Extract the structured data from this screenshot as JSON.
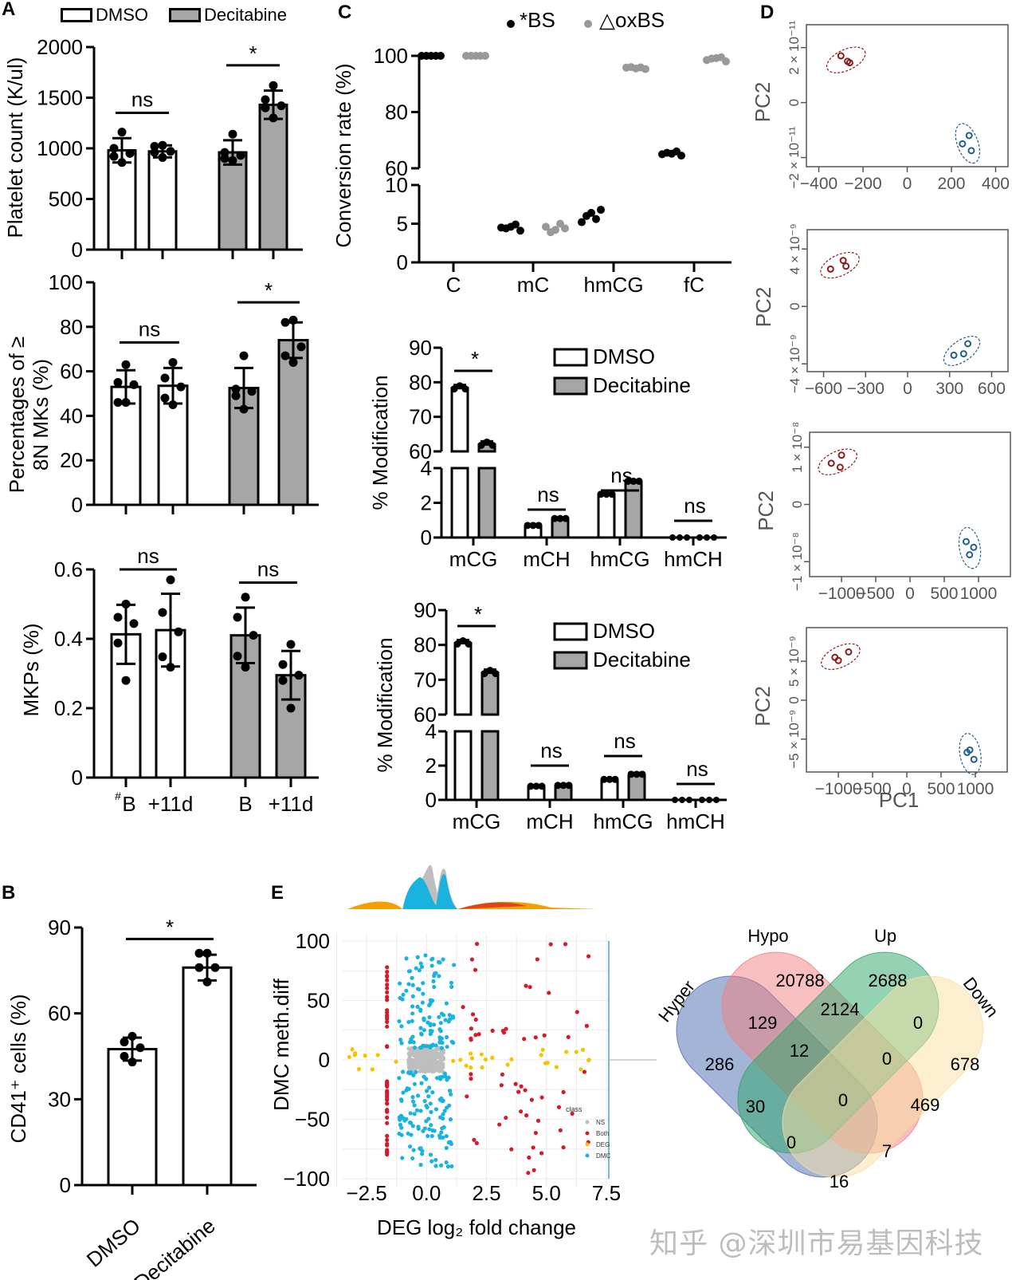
{
  "panel_labels": {
    "A": "A",
    "B": "B",
    "C": "C",
    "D": "D",
    "E": "E"
  },
  "legend_A": {
    "dmso": "DMSO",
    "decitabine": "Decitabine"
  },
  "colors": {
    "dmso_fill": "#ffffff",
    "decitabine_fill": "#a6a6a6",
    "bs": "#000000",
    "oxbs": "#999999",
    "pca_red": "#8b1a1a",
    "pca_blue": "#1f5f8b",
    "ns": "#bebebe",
    "both": "#d7192b",
    "deg": "#f2c500",
    "dmc": "#1ab3e0"
  },
  "watermark": "知乎 @深圳市易基因科技",
  "chart_data": [
    {
      "id": "A1",
      "type": "bar",
      "ylabel": "Platelet count (K/ul)",
      "ylim": [
        0,
        2000
      ],
      "yticks": [
        0,
        500,
        1000,
        1500,
        2000
      ],
      "groups": [
        "DMSO",
        "DMSO",
        "Decitabine",
        "Decitabine"
      ],
      "values": [
        980,
        970,
        960,
        1430
      ],
      "sd": [
        120,
        60,
        120,
        140
      ],
      "points": [
        [
          1160,
          1000,
          950,
          920,
          860
        ],
        [
          1030,
          1020,
          970,
          960,
          910
        ],
        [
          1140,
          960,
          930,
          900,
          880
        ],
        [
          1620,
          1480,
          1420,
          1400,
          1300
        ]
      ],
      "significance": [
        {
          "label": "ns",
          "pair": [
            0,
            1
          ],
          "y": 1350
        },
        {
          "label": "*",
          "pair": [
            2,
            3
          ],
          "y": 1820
        }
      ]
    },
    {
      "id": "A2",
      "type": "bar",
      "ylabel_lines": [
        "Percentages of ≥",
        "8N MKs (%)"
      ],
      "ylim": [
        0,
        100
      ],
      "yticks": [
        0,
        20,
        40,
        60,
        80,
        100
      ],
      "values": [
        53,
        53.5,
        52.5,
        74
      ],
      "sd": [
        7.5,
        8,
        9,
        8
      ],
      "points": [
        [
          63,
          55,
          54,
          46,
          46
        ],
        [
          64,
          57,
          53,
          48,
          45
        ],
        [
          67,
          52,
          51,
          49,
          43
        ],
        [
          83,
          82,
          71,
          67,
          64
        ]
      ],
      "significance": [
        {
          "label": "ns",
          "pair": [
            0,
            1
          ],
          "y": 73
        },
        {
          "label": "*",
          "pair": [
            2,
            3
          ],
          "y": 91
        }
      ]
    },
    {
      "id": "A3",
      "type": "bar",
      "ylabel": "MKPs (%)",
      "ylim": [
        0,
        0.6
      ],
      "yticks": [
        "0",
        "0.2",
        "0.4",
        "0.6"
      ],
      "categories": [
        "#B",
        "+11d",
        "B",
        "+11d"
      ],
      "values": [
        0.413,
        0.425,
        0.41,
        0.295
      ],
      "sd": [
        0.085,
        0.105,
        0.08,
        0.07
      ],
      "points": [
        [
          0.5,
          0.462,
          0.444,
          0.388,
          0.28
        ],
        [
          0.57,
          0.476,
          0.42,
          0.348,
          0.318
        ],
        [
          0.52,
          0.462,
          0.41,
          0.35,
          0.318
        ],
        [
          0.384,
          0.326,
          0.295,
          0.28,
          0.2
        ]
      ],
      "significance": [
        {
          "label": "ns",
          "pair": [
            0,
            1
          ],
          "y": 0.6
        },
        {
          "label": "ns",
          "pair": [
            2,
            3
          ],
          "y": 0.562
        }
      ]
    },
    {
      "id": "B",
      "type": "bar",
      "ylabel": "CD41⁺ cells (%)",
      "ylim": [
        0,
        90
      ],
      "yticks": [
        0,
        30,
        60,
        90
      ],
      "categories": [
        "DMSO",
        "Decitabine"
      ],
      "values": [
        47.5,
        76
      ],
      "sd": [
        4,
        4.5
      ],
      "points": [
        [
          52,
          50,
          48,
          45,
          43
        ],
        [
          81,
          81,
          76,
          76,
          71
        ]
      ],
      "significance": [
        {
          "label": "*",
          "pair": [
            0,
            1
          ],
          "y": 86
        }
      ]
    },
    {
      "id": "C1",
      "type": "scatter",
      "legend": [
        "*BS",
        "△oxBS"
      ],
      "ylabel": "Conversion rate (%)",
      "categories": [
        "C",
        "mC",
        "hmCG",
        "fC"
      ],
      "upper_ylim": [
        60,
        100
      ],
      "upper_yticks": [
        60,
        80,
        100
      ],
      "lower_ylim": [
        0,
        10
      ],
      "lower_yticks": [
        0,
        5,
        10
      ],
      "series": [
        {
          "name": "BS",
          "values": [
            [
              100,
              100,
              100,
              100,
              100
            ],
            [
              4.5,
              4.4,
              4.6,
              4.9,
              4.1
            ],
            [
              5.2,
              6.0,
              6.4,
              5.6,
              6.8
            ]
          ],
          "values_upper_fC": [
            65,
            65.5,
            65.2,
            66,
            64.5
          ]
        },
        {
          "name": "oxBS",
          "values_upper": [
            [
              100,
              100,
              100,
              100,
              100
            ],
            [],
            [
              95.8,
              96,
              95.5,
              95.9,
              95.3
            ],
            [
              98.5,
              99,
              99.2,
              99.5,
              98
            ]
          ],
          "values_lower_mC": [
            4.6,
            3.9,
            4.2,
            5.0,
            4.4
          ]
        }
      ]
    },
    {
      "id": "C2",
      "type": "bar",
      "ylabel": "% Modification",
      "legend": [
        "DMSO",
        "Decitabine"
      ],
      "categories": [
        "mCG",
        "mCH",
        "hmCG",
        "hmCH"
      ],
      "upper_ylim": [
        60,
        90
      ],
      "upper_yticks": [
        60,
        70,
        80,
        90
      ],
      "lower_ylim": [
        0,
        4
      ],
      "lower_yticks": [
        0,
        2,
        4
      ],
      "series": [
        {
          "name": "DMSO",
          "values": [
            78.3,
            0.65,
            2.45,
            0.02
          ]
        },
        {
          "name": "Decitabine",
          "values": [
            62,
            1.05,
            3.2,
            0.02
          ]
        }
      ],
      "significance": [
        "*",
        "ns",
        "ns",
        "ns"
      ]
    },
    {
      "id": "C3",
      "type": "bar",
      "ylabel": "% Modification",
      "legend": [
        "DMSO",
        "Decitabine"
      ],
      "categories": [
        "mCG",
        "mCH",
        "hmCG",
        "hmCH"
      ],
      "upper_ylim": [
        60,
        90
      ],
      "upper_yticks": [
        60,
        70,
        80,
        90
      ],
      "lower_ylim": [
        0,
        4
      ],
      "lower_yticks": [
        0,
        2,
        4
      ],
      "series": [
        {
          "name": "DMSO",
          "values": [
            80.5,
            0.75,
            1.15,
            0.02
          ]
        },
        {
          "name": "Decitabine",
          "values": [
            72,
            0.8,
            1.45,
            0.02
          ]
        }
      ],
      "significance": [
        "*",
        "ns",
        "ns",
        "ns"
      ]
    },
    {
      "id": "D",
      "type": "scatter",
      "xlabel": "PC1",
      "ylabel": "PC2",
      "plots": [
        {
          "xticks": [
            "-400",
            "-200",
            "0",
            "200",
            "400"
          ],
          "xlim": [
            -420,
            420
          ],
          "yticks": [
            "-2 × 10⁻¹¹",
            "0",
            "2 × 10⁻¹¹"
          ],
          "ylim": [
            -2.1,
            2.6
          ],
          "red": [
            [
              -300,
              1.7
            ],
            [
              -270,
              1.5
            ],
            [
              -260,
              1.45
            ]
          ],
          "blue": [
            [
              250,
              -1.5
            ],
            [
              280,
              -1.2
            ],
            [
              290,
              -1.75
            ]
          ]
        },
        {
          "xticks": [
            "-600",
            "-300",
            "0",
            "300",
            "600"
          ],
          "xlim": [
            -660,
            660
          ],
          "yticks": [
            "-4 × 10⁻⁹",
            "0",
            "4 × 10⁻⁹"
          ],
          "ylim": [
            -4.1,
            4.9
          ],
          "red": [
            [
              -550,
              2.6
            ],
            [
              -460,
              3.2
            ],
            [
              -440,
              2.8
            ]
          ],
          "blue": [
            [
              330,
              -3.4
            ],
            [
              400,
              -3.3
            ],
            [
              430,
              -2.6
            ]
          ]
        },
        {
          "xticks": [
            "-1000",
            "-500",
            "0",
            "500",
            "1000"
          ],
          "xlim": [
            -1350,
            1350
          ],
          "yticks": [
            "-1 × 10⁻⁸",
            "0",
            "1 × 10⁻⁸"
          ],
          "ylim": [
            -1.15,
            1.15
          ],
          "red": [
            [
              -1150,
              0.72
            ],
            [
              -1000,
              0.86
            ],
            [
              -1020,
              0.65
            ]
          ],
          "blue": [
            [
              820,
              -0.65
            ],
            [
              930,
              -0.75
            ],
            [
              870,
              -0.88
            ]
          ]
        },
        {
          "xticks": [
            "-1000",
            "-500",
            "0",
            "500",
            "1000"
          ],
          "xlim": [
            -1350,
            1350
          ],
          "yticks": [
            "-5 × 10⁻⁹",
            "0",
            "5 × 10⁻⁹"
          ],
          "ylim": [
            -8.4,
            8.5
          ],
          "red": [
            [
              -1050,
              5.5
            ],
            [
              -1000,
              5.1
            ],
            [
              -850,
              6.2
            ]
          ],
          "blue": [
            [
              880,
              -6.7
            ],
            [
              920,
              -6.4
            ],
            [
              980,
              -7.6
            ]
          ]
        }
      ]
    },
    {
      "id": "E_scatter",
      "type": "scatter",
      "xlabel": "DEG log₂ fold change",
      "ylabel": "DMC meth.diff",
      "xlim": [
        -3.5,
        7.8
      ],
      "ylim": [
        -100,
        100
      ],
      "xticks": [
        "-2.5",
        "0.0",
        "2.5",
        "5.0",
        "7.5"
      ],
      "yticks": [
        "-100",
        "-50",
        "0",
        "50",
        "100"
      ],
      "legend_title": "class",
      "classes": [
        "NS",
        "Both",
        "DEG",
        "DMC"
      ]
    },
    {
      "id": "E_venn",
      "type": "venn",
      "sets": [
        "Hyper",
        "Hypo",
        "Up",
        "Down"
      ],
      "regions": {
        "Hyper_only": 286,
        "Hypo_only": 20788,
        "Up_only": 2688,
        "Down_only": 678,
        "Hyper_Hypo": 129,
        "Hypo_Up": 2124,
        "Up_Down": 0,
        "Hyper_Hypo_Up": 12,
        "Hypo_Up_Down": 0,
        "all": 0,
        "Hyper_Up": 30,
        "Hypo_Down": 469,
        "Hyper_Up_Down": 0,
        "Hyper_Hypo_Down": 7,
        "Hyper_Down": 16
      }
    }
  ]
}
